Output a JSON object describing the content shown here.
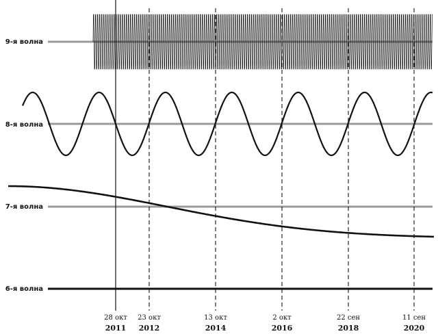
{
  "waves": [
    {
      "label": "9-я волна",
      "kind": "fast-oscillation"
    },
    {
      "label": "8-я волна",
      "kind": "sine"
    },
    {
      "label": "7-я волна",
      "kind": "decay"
    },
    {
      "label": "6-я волна",
      "kind": "flat"
    }
  ],
  "markers": [
    {
      "date": "28 окт",
      "year": "2011",
      "style": "solid"
    },
    {
      "date": "23 окт",
      "year": "2012",
      "style": "dashed"
    },
    {
      "date": "13 окт",
      "year": "2014",
      "style": "dashed"
    },
    {
      "date": "2 окт",
      "year": "2016",
      "style": "dashed"
    },
    {
      "date": "22 сен",
      "year": "2018",
      "style": "dashed"
    },
    {
      "date": "11 сен",
      "year": "2020",
      "style": "dashed"
    }
  ],
  "colors": {
    "baseline": "#9a9a9a",
    "curve": "#111111",
    "marker": "#111111"
  }
}
